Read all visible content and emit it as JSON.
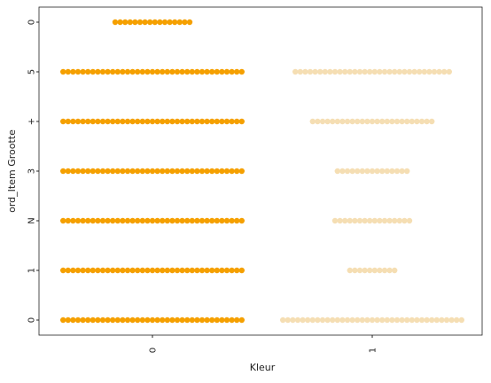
{
  "chart_data": {
    "type": "scatter",
    "subtype": "swarm",
    "xlabel": "Kleur",
    "ylabel": "ord_Item Grootte",
    "categories": [
      "0",
      "1"
    ],
    "y_tick_labels": [
      "0",
      "1",
      "N",
      "3",
      "+",
      "5",
      "0"
    ],
    "grid": false,
    "legend": "none",
    "series": [
      {
        "category": "0",
        "color": "#f5a000",
        "rows": [
          {
            "y": 0,
            "count": 37
          },
          {
            "y": 1,
            "count": 37
          },
          {
            "y": 2,
            "count": 37
          },
          {
            "y": 3,
            "count": 37
          },
          {
            "y": 4,
            "count": 37
          },
          {
            "y": 5,
            "count": 37
          },
          {
            "y": 6,
            "count": 16
          }
        ]
      },
      {
        "category": "1",
        "color": "#f5deb3",
        "rows": [
          {
            "y": 0,
            "count": 37
          },
          {
            "y": 1,
            "count": 10
          },
          {
            "y": 2,
            "count": 16
          },
          {
            "y": 3,
            "count": 15
          },
          {
            "y": 4,
            "count": 25
          },
          {
            "y": 5,
            "count": 32
          }
        ]
      }
    ]
  }
}
